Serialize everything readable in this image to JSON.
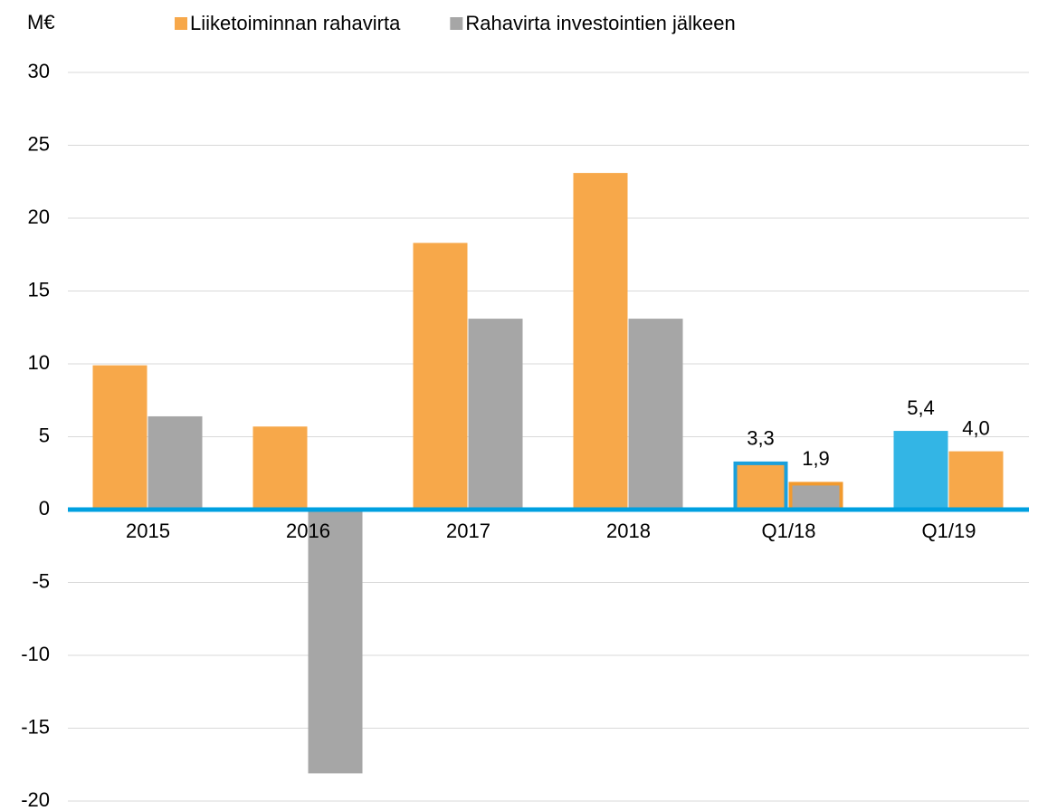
{
  "chart_data": {
    "type": "bar",
    "y_label": "M€",
    "categories": [
      "2015",
      "2016",
      "2017",
      "2018",
      "Q1/18",
      "Q1/19"
    ],
    "series": [
      {
        "name": "Liiketoiminnan rahavirta",
        "color": "#f7a84a",
        "values": [
          9.9,
          5.7,
          18.3,
          23.1,
          3.3,
          5.4
        ],
        "value_labels": [
          null,
          null,
          null,
          null,
          "3,3",
          "5,4"
        ],
        "point_colors": [
          {
            "index": 5,
            "color": "#33b5e5"
          }
        ],
        "outlines": [
          {
            "index": 4,
            "color": "#1aa0dc"
          }
        ]
      },
      {
        "name": "Rahavirta investointien jälkeen",
        "color": "#a6a6a6",
        "values": [
          6.4,
          -18.1,
          13.1,
          13.1,
          1.9,
          4.0
        ],
        "value_labels": [
          null,
          null,
          null,
          null,
          "1,9",
          "4,0"
        ],
        "point_colors": [
          {
            "index": 5,
            "color": "#f7a84a"
          }
        ],
        "outlines": [
          {
            "index": 4,
            "color": "#f29a2e"
          }
        ]
      }
    ],
    "ylim": [
      -20,
      30
    ],
    "yticks": [
      -20,
      -15,
      -10,
      -5,
      0,
      5,
      10,
      15,
      20,
      25,
      30
    ],
    "grid": true,
    "legend": "top",
    "zero_line_color": "#00a0e0"
  }
}
